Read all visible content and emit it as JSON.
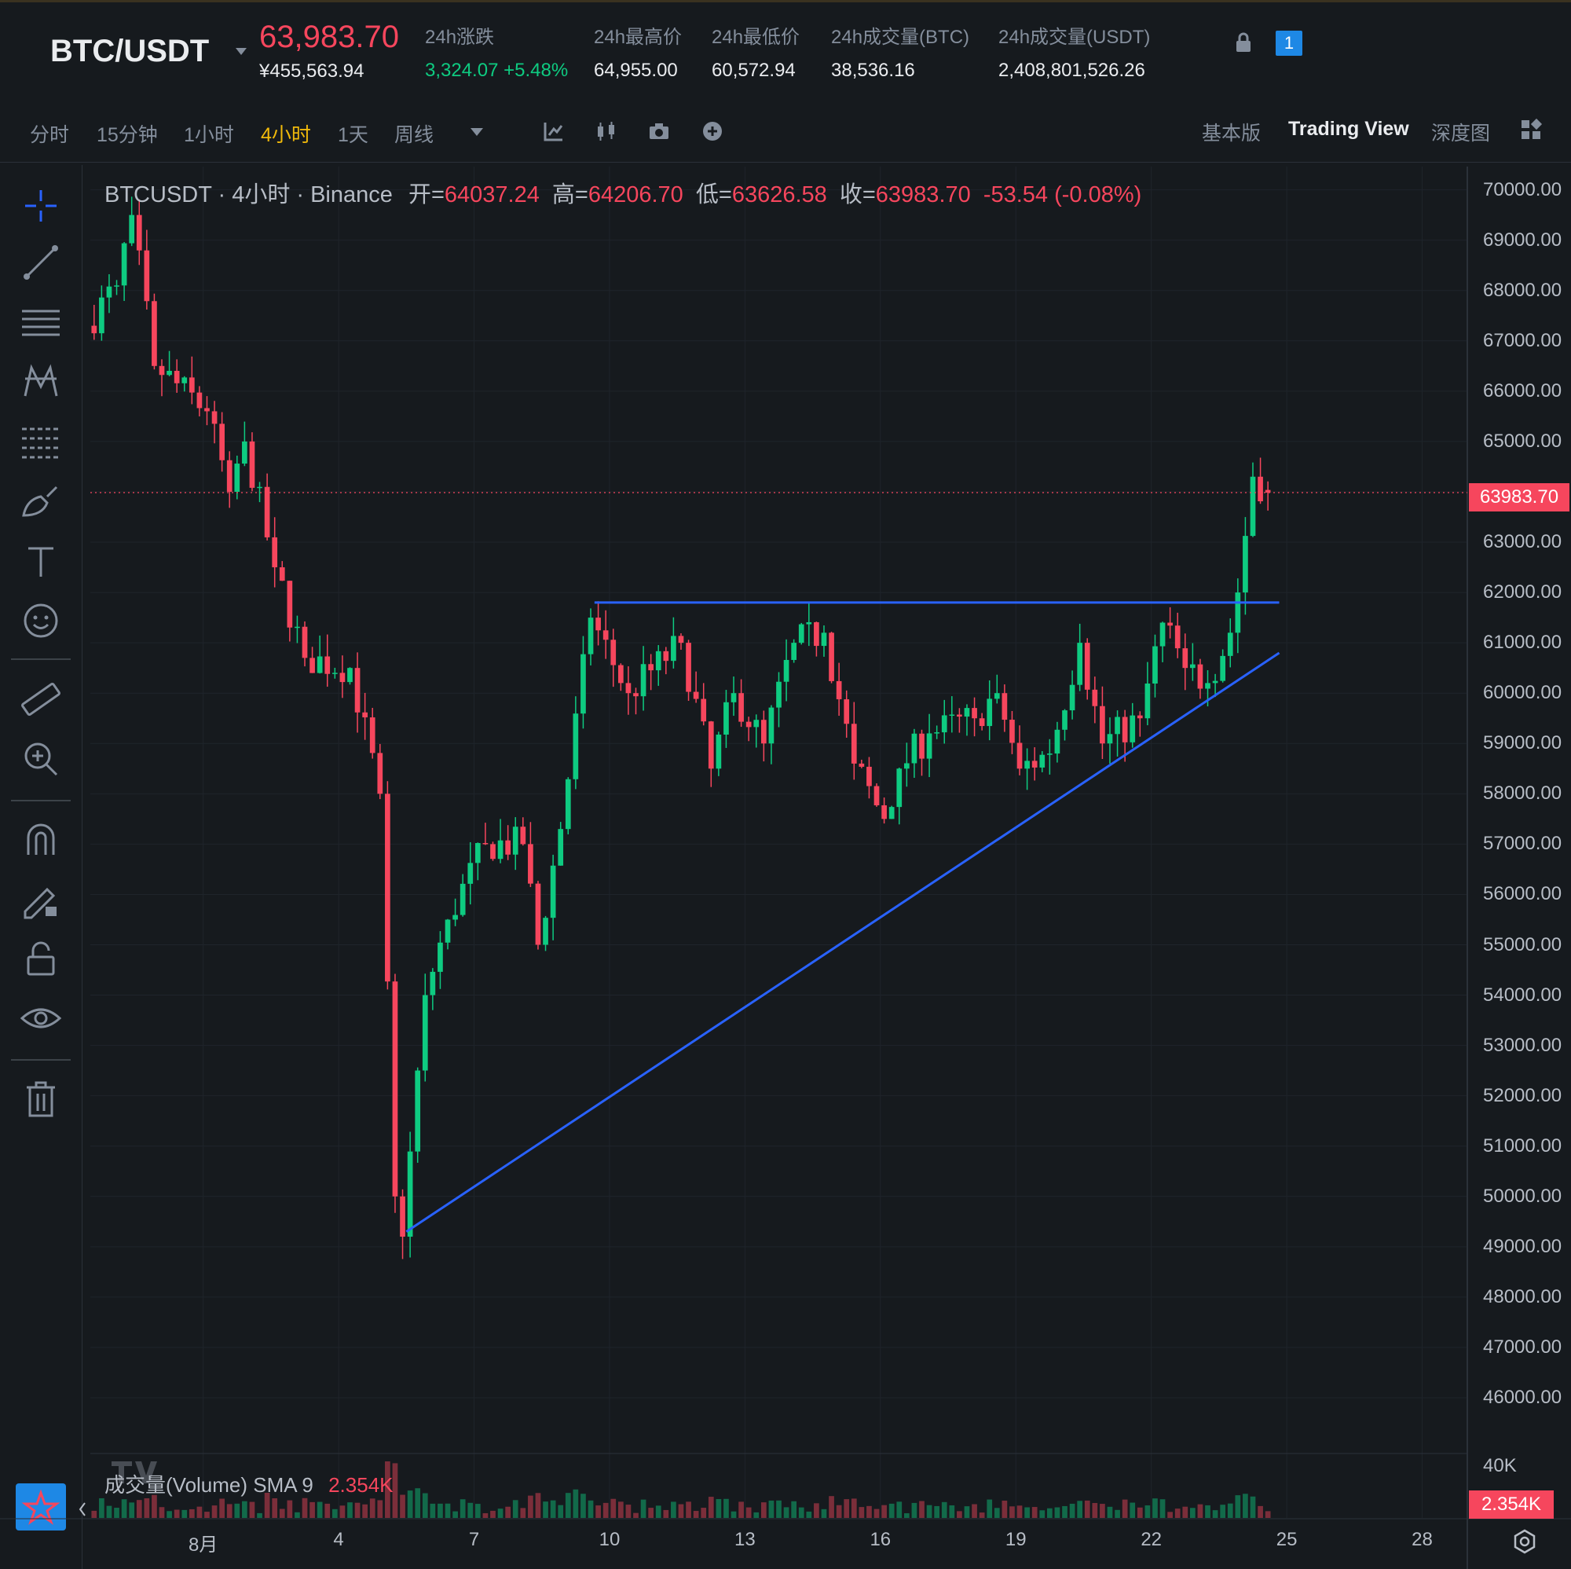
{
  "header": {
    "pair": "BTC/USDT",
    "last_price": "63,983.70",
    "cny_price": "¥455,563.94",
    "stats": [
      {
        "label": "24h涨跌",
        "value": "3,324.07 +5.48%"
      },
      {
        "label": "24h最高价",
        "value": "64,955.00"
      },
      {
        "label": "24h最低价",
        "value": "60,572.94"
      },
      {
        "label": "24h成交量(BTC)",
        "value": "38,536.16"
      },
      {
        "label": "24h成交量(USDT)",
        "value": "2,408,801,526.26"
      }
    ],
    "badge": "1"
  },
  "toolbar": {
    "timeframes": [
      "分时",
      "15分钟",
      "1小时",
      "4小时",
      "1天",
      "周线"
    ],
    "active_timeframe": "4小时",
    "views": [
      "基本版",
      "Trading View",
      "深度图"
    ],
    "active_view": "Trading View"
  },
  "chart": {
    "legend": {
      "symbol": "BTCUSDT · 4小时 · Binance",
      "open_label": "开=",
      "open": "64037.24",
      "high_label": "高=",
      "high": "64206.70",
      "low_label": "低=",
      "low": "63626.58",
      "close_label": "收=",
      "close": "63983.70",
      "change": "-53.54 (-0.08%)"
    },
    "volume_legend": {
      "label": "成交量(Volume) SMA 9",
      "value": "2.354K"
    },
    "y_ticks": [
      "70000.00",
      "69000.00",
      "68000.00",
      "67000.00",
      "66000.00",
      "65000.00",
      "64000.00",
      "63000.00",
      "62000.00",
      "61000.00",
      "60000.00",
      "59000.00",
      "58000.00",
      "57000.00",
      "56000.00",
      "55000.00",
      "54000.00",
      "53000.00",
      "52000.00",
      "51000.00",
      "50000.00",
      "49000.00",
      "48000.00",
      "47000.00",
      "46000.00"
    ],
    "price_tag": "63983.70",
    "volume_max_label": "40K",
    "volume_tag": "2.354K",
    "x_ticks": [
      "8月",
      "4",
      "7",
      "10",
      "13",
      "16",
      "19",
      "22",
      "25",
      "28"
    ],
    "colors": {
      "up": "#0ecb81",
      "down": "#f6465d",
      "trendline": "#2962ff",
      "background": "#161a1e"
    }
  },
  "chart_data": {
    "type": "candlestick",
    "symbol": "BTCUSDT",
    "interval": "4小时",
    "y_range": [
      45000,
      70200
    ],
    "x_range": [
      "2024-07-29T12:00",
      "2024-08-29T00:00"
    ],
    "current_price": 63983.7,
    "price_waypoints": [
      {
        "t": "2024-07-29T12:00",
        "p": 67300
      },
      {
        "t": "2024-07-30T04:00",
        "p": 68100
      },
      {
        "t": "2024-07-30T12:00",
        "p": 69500
      },
      {
        "t": "2024-07-31T00:00",
        "p": 66500
      },
      {
        "t": "2024-08-01T04:00",
        "p": 65600
      },
      {
        "t": "2024-08-01T16:00",
        "p": 64000
      },
      {
        "t": "2024-08-02T00:00",
        "p": 65000
      },
      {
        "t": "2024-08-02T16:00",
        "p": 62500
      },
      {
        "t": "2024-08-03T08:00",
        "p": 60700
      },
      {
        "t": "2024-08-04T08:00",
        "p": 60500
      },
      {
        "t": "2024-08-05T00:00",
        "p": 58000
      },
      {
        "t": "2024-08-05T08:00",
        "p": 50000
      },
      {
        "t": "2024-08-05T12:00",
        "p": 49200
      },
      {
        "t": "2024-08-06T00:00",
        "p": 54000
      },
      {
        "t": "2024-08-06T12:00",
        "p": 55500
      },
      {
        "t": "2024-08-07T08:00",
        "p": 57000
      },
      {
        "t": "2024-08-08T04:00",
        "p": 57000
      },
      {
        "t": "2024-08-08T12:00",
        "p": 55000
      },
      {
        "t": "2024-08-09T00:00",
        "p": 57300
      },
      {
        "t": "2024-08-09T16:00",
        "p": 61500
      },
      {
        "t": "2024-08-10T12:00",
        "p": 60000
      },
      {
        "t": "2024-08-11T16:00",
        "p": 61000
      },
      {
        "t": "2024-08-12T08:00",
        "p": 58500
      },
      {
        "t": "2024-08-12T20:00",
        "p": 60000
      },
      {
        "t": "2024-08-13T12:00",
        "p": 59000
      },
      {
        "t": "2024-08-14T04:00",
        "p": 61000
      },
      {
        "t": "2024-08-14T20:00",
        "p": 61200
      },
      {
        "t": "2024-08-15T12:00",
        "p": 58600
      },
      {
        "t": "2024-08-16T04:00",
        "p": 57500
      },
      {
        "t": "2024-08-16T12:00",
        "p": 58500
      },
      {
        "t": "2024-08-17T04:00",
        "p": 59200
      },
      {
        "t": "2024-08-18T04:00",
        "p": 59500
      },
      {
        "t": "2024-08-18T16:00",
        "p": 60000
      },
      {
        "t": "2024-08-19T04:00",
        "p": 58500
      },
      {
        "t": "2024-08-19T20:00",
        "p": 58800
      },
      {
        "t": "2024-08-20T12:00",
        "p": 61000
      },
      {
        "t": "2024-08-21T00:00",
        "p": 59000
      },
      {
        "t": "2024-08-21T20:00",
        "p": 59500
      },
      {
        "t": "2024-08-22T08:00",
        "p": 61400
      },
      {
        "t": "2024-08-22T20:00",
        "p": 60500
      },
      {
        "t": "2024-08-23T08:00",
        "p": 60200
      },
      {
        "t": "2024-08-23T20:00",
        "p": 61200
      },
      {
        "t": "2024-08-24T00:00",
        "p": 62000
      },
      {
        "t": "2024-08-24T08:00",
        "p": 64300
      },
      {
        "t": "2024-08-24T16:00",
        "p": 63983.7
      }
    ],
    "trendlines": [
      {
        "name": "resistance",
        "from": {
          "t": "2024-08-09T16:00",
          "p": 61800
        },
        "to": {
          "t": "2024-08-24T20:00",
          "p": 61800
        }
      },
      {
        "name": "support",
        "from": {
          "t": "2024-08-05T12:00",
          "p": 49300
        },
        "to": {
          "t": "2024-08-24T20:00",
          "p": 60800
        }
      }
    ],
    "volume_sma9": "2.354K",
    "volume_axis_max": "40K",
    "grid": true,
    "time_ticks": [
      "8月",
      "4",
      "7",
      "10",
      "13",
      "16",
      "19",
      "22",
      "25",
      "28"
    ],
    "price_ticks": [
      70000,
      69000,
      68000,
      67000,
      66000,
      65000,
      64000,
      63000,
      62000,
      61000,
      60000,
      59000,
      58000,
      57000,
      56000,
      55000,
      54000,
      53000,
      52000,
      51000,
      50000,
      49000,
      48000,
      47000,
      46000
    ]
  }
}
